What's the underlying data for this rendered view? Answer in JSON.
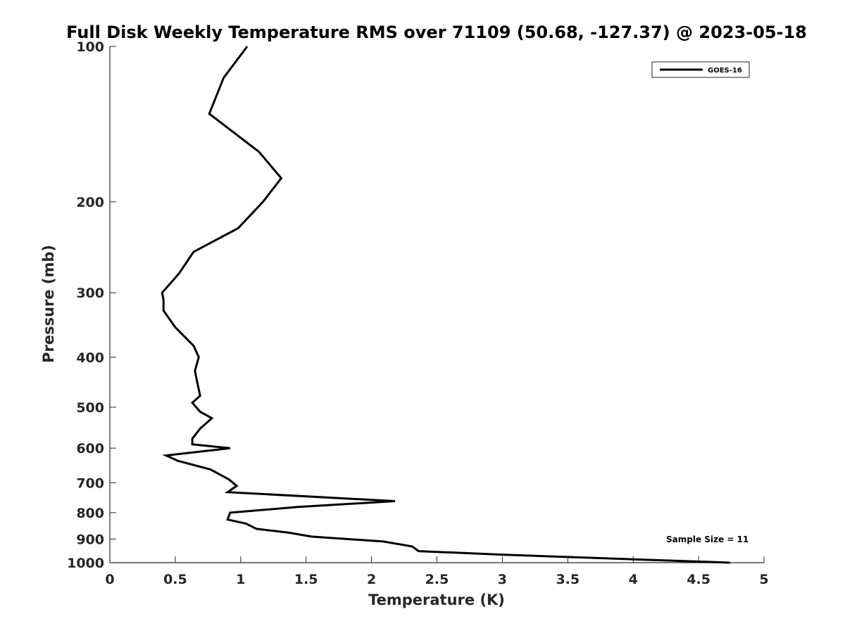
{
  "chart_data": {
    "type": "line",
    "title": "Full Disk Weekly Temperature RMS over 71109 (50.68, -127.37) @ 2023-05-18",
    "xlabel": "Temperature (K)",
    "ylabel": "Pressure (mb)",
    "xlim": [
      0,
      5
    ],
    "ylim": [
      100,
      1000
    ],
    "y_scale": "log",
    "y_reversed": true,
    "x_ticks": [
      "0",
      "0.5",
      "1",
      "1.5",
      "2",
      "2.5",
      "3",
      "3.5",
      "4",
      "4.5",
      "5"
    ],
    "y_ticks": [
      "100",
      "200",
      "300",
      "400",
      "500",
      "600",
      "700",
      "800",
      "900",
      "1000"
    ],
    "grid": false,
    "legend": {
      "placement": "top-right",
      "entries": [
        "GOES-16"
      ]
    },
    "annotations": [
      "Sample Size = 11"
    ],
    "series": [
      {
        "name": "GOES-16",
        "color": "#000000",
        "points": [
          [
            1.05,
            100
          ],
          [
            0.87,
            115
          ],
          [
            0.76,
            135
          ],
          [
            1.14,
            160
          ],
          [
            1.31,
            180
          ],
          [
            1.17,
            200
          ],
          [
            0.98,
            225
          ],
          [
            0.64,
            250
          ],
          [
            0.53,
            275
          ],
          [
            0.4,
            300
          ],
          [
            0.41,
            310
          ],
          [
            0.41,
            325
          ],
          [
            0.5,
            350
          ],
          [
            0.64,
            380
          ],
          [
            0.68,
            400
          ],
          [
            0.65,
            425
          ],
          [
            0.67,
            450
          ],
          [
            0.69,
            475
          ],
          [
            0.63,
            490
          ],
          [
            0.69,
            510
          ],
          [
            0.78,
            525
          ],
          [
            0.69,
            550
          ],
          [
            0.63,
            575
          ],
          [
            0.63,
            590
          ],
          [
            0.92,
            600
          ],
          [
            0.43,
            620
          ],
          [
            0.52,
            635
          ],
          [
            0.77,
            660
          ],
          [
            0.91,
            690
          ],
          [
            0.97,
            710
          ],
          [
            0.9,
            730
          ],
          [
            2.18,
            760
          ],
          [
            1.44,
            780
          ],
          [
            0.92,
            800
          ],
          [
            0.9,
            825
          ],
          [
            1.04,
            840
          ],
          [
            1.12,
            860
          ],
          [
            1.37,
            875
          ],
          [
            1.54,
            890
          ],
          [
            2.09,
            910
          ],
          [
            2.31,
            930
          ],
          [
            2.36,
            950
          ],
          [
            3.0,
            965
          ],
          [
            4.0,
            985
          ],
          [
            4.74,
            1000
          ]
        ]
      }
    ]
  }
}
